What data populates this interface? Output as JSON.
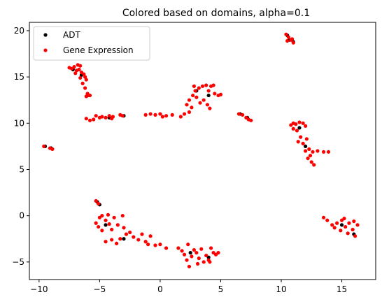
{
  "chart_data": {
    "type": "scatter",
    "title": "Colored based on domains, alpha=0.1",
    "xlabel": "",
    "ylabel": "",
    "xlim": [
      -10.8,
      17.8
    ],
    "ylim": [
      -6.9,
      20.9
    ],
    "x_ticks": [
      -10,
      -5,
      0,
      5,
      10,
      15
    ],
    "y_ticks": [
      -5,
      0,
      5,
      10,
      15,
      20
    ],
    "x_tick_labels": [
      "−10",
      "−5",
      "0",
      "5",
      "10",
      "15"
    ],
    "y_tick_labels": [
      "−5",
      "0",
      "5",
      "10",
      "15",
      "20"
    ],
    "grid": false,
    "legend": {
      "placement": "top-left",
      "entries": [
        {
          "label": "ADT",
          "color": "#000000"
        },
        {
          "label": "Gene Expression",
          "color": "#ff0000"
        }
      ]
    },
    "series": [
      {
        "name": "ADT",
        "color": "#000000",
        "points": [
          [
            10.5,
            19.5
          ],
          [
            10.7,
            19.0
          ],
          [
            11.0,
            18.8
          ],
          [
            -7.2,
            15.8
          ],
          [
            -6.5,
            15.2
          ],
          [
            -6.0,
            13.0
          ],
          [
            -4.2,
            10.6
          ],
          [
            -3.0,
            10.8
          ],
          [
            -9.5,
            7.5
          ],
          [
            -9.0,
            7.3
          ],
          [
            3.0,
            13.5
          ],
          [
            4.0,
            13.0
          ],
          [
            7.2,
            10.6
          ],
          [
            6.6,
            11.0
          ],
          [
            -5.2,
            1.5
          ],
          [
            -5.0,
            1.2
          ],
          [
            -4.5,
            -1.0
          ],
          [
            -3.0,
            -2.5
          ],
          [
            2.5,
            -4.0
          ],
          [
            4.0,
            -4.5
          ],
          [
            11.5,
            9.5
          ],
          [
            12.0,
            7.5
          ],
          [
            15.0,
            -1.0
          ],
          [
            16.0,
            -2.0
          ]
        ]
      },
      {
        "name": "Gene Expression",
        "color": "#ff0000",
        "points": [
          [
            10.4,
            19.6
          ],
          [
            10.6,
            19.3
          ],
          [
            10.8,
            19.0
          ],
          [
            10.5,
            18.9
          ],
          [
            11.0,
            18.7
          ],
          [
            10.9,
            19.1
          ],
          [
            -7.5,
            16.0
          ],
          [
            -7.3,
            15.9
          ],
          [
            -7.1,
            16.1
          ],
          [
            -6.9,
            15.7
          ],
          [
            -6.8,
            16.3
          ],
          [
            -6.6,
            16.2
          ],
          [
            -6.5,
            15.5
          ],
          [
            -6.3,
            15.3
          ],
          [
            -6.2,
            15.0
          ],
          [
            -6.1,
            14.7
          ],
          [
            -6.4,
            14.3
          ],
          [
            -6.2,
            13.8
          ],
          [
            -6.0,
            13.2
          ],
          [
            -6.1,
            12.9
          ],
          [
            -5.8,
            13.0
          ],
          [
            -6.6,
            14.9
          ],
          [
            -7.0,
            15.4
          ],
          [
            -6.7,
            15.8
          ],
          [
            -6.1,
            10.5
          ],
          [
            -5.8,
            10.3
          ],
          [
            -5.5,
            10.4
          ],
          [
            -5.0,
            10.6
          ],
          [
            -4.8,
            10.7
          ],
          [
            -4.5,
            10.6
          ],
          [
            -4.2,
            10.8
          ],
          [
            -3.9,
            10.7
          ],
          [
            -3.3,
            10.9
          ],
          [
            -3.1,
            10.8
          ],
          [
            -5.3,
            10.8
          ],
          [
            -4.0,
            10.5
          ],
          [
            -1.2,
            10.9
          ],
          [
            -0.8,
            11.0
          ],
          [
            -0.4,
            10.9
          ],
          [
            0.0,
            11.0
          ],
          [
            0.5,
            10.8
          ],
          [
            1.0,
            10.9
          ],
          [
            1.7,
            10.7
          ],
          [
            2.0,
            11.0
          ],
          [
            2.4,
            11.2
          ],
          [
            0.2,
            10.7
          ],
          [
            -9.6,
            7.5
          ],
          [
            -9.1,
            7.3
          ],
          [
            -8.9,
            7.2
          ],
          [
            2.2,
            12.0
          ],
          [
            2.4,
            12.5
          ],
          [
            2.7,
            13.0
          ],
          [
            2.9,
            13.5
          ],
          [
            3.2,
            13.8
          ],
          [
            3.5,
            14.0
          ],
          [
            3.8,
            14.1
          ],
          [
            4.0,
            13.5
          ],
          [
            4.2,
            14.0
          ],
          [
            4.5,
            13.2
          ],
          [
            3.0,
            12.8
          ],
          [
            3.6,
            12.5
          ],
          [
            3.9,
            12.0
          ],
          [
            4.1,
            11.6
          ],
          [
            2.6,
            11.7
          ],
          [
            4.8,
            13.0
          ],
          [
            5.0,
            13.1
          ],
          [
            3.3,
            12.2
          ],
          [
            2.8,
            14.0
          ],
          [
            4.4,
            14.1
          ],
          [
            6.5,
            11.0
          ],
          [
            6.8,
            10.9
          ],
          [
            7.1,
            10.6
          ],
          [
            7.3,
            10.4
          ],
          [
            7.5,
            10.3
          ],
          [
            -5.3,
            1.6
          ],
          [
            -5.1,
            1.3
          ],
          [
            -4.8,
            0.0
          ],
          [
            -5.3,
            -0.8
          ],
          [
            -5.1,
            -1.2
          ],
          [
            -4.8,
            -1.6
          ],
          [
            -4.5,
            -0.5
          ],
          [
            -4.2,
            -0.9
          ],
          [
            -4.0,
            -1.5
          ],
          [
            -3.8,
            -0.2
          ],
          [
            -3.5,
            -1.0
          ],
          [
            -3.3,
            -2.5
          ],
          [
            -3.0,
            -1.3
          ],
          [
            -2.8,
            -2.0
          ],
          [
            -4.5,
            -2.8
          ],
          [
            -4.0,
            -2.6
          ],
          [
            -3.6,
            -3.0
          ],
          [
            -2.5,
            -1.8
          ],
          [
            -2.2,
            -2.3
          ],
          [
            -1.8,
            -2.6
          ],
          [
            -1.5,
            -2.0
          ],
          [
            -1.2,
            -2.8
          ],
          [
            -1.0,
            -3.1
          ],
          [
            -0.8,
            -2.2
          ],
          [
            -0.4,
            -3.2
          ],
          [
            0.0,
            -3.1
          ],
          [
            0.5,
            -3.5
          ],
          [
            -5.0,
            -0.2
          ],
          [
            -4.3,
            0.1
          ],
          [
            -3.1,
            0.0
          ],
          [
            1.5,
            -3.5
          ],
          [
            1.8,
            -3.8
          ],
          [
            2.0,
            -4.2
          ],
          [
            2.2,
            -4.8
          ],
          [
            2.4,
            -5.5
          ],
          [
            2.6,
            -4.4
          ],
          [
            2.8,
            -3.7
          ],
          [
            3.0,
            -4.0
          ],
          [
            3.2,
            -4.6
          ],
          [
            3.4,
            -3.6
          ],
          [
            3.6,
            -5.0
          ],
          [
            3.8,
            -4.3
          ],
          [
            4.0,
            -4.8
          ],
          [
            4.2,
            -3.5
          ],
          [
            4.4,
            -4.0
          ],
          [
            4.6,
            -4.2
          ],
          [
            4.8,
            -4.0
          ],
          [
            2.3,
            -3.1
          ],
          [
            3.1,
            -5.2
          ],
          [
            4.1,
            -5.0
          ],
          [
            10.8,
            9.8
          ],
          [
            11.0,
            10.0
          ],
          [
            11.2,
            9.9
          ],
          [
            11.5,
            10.1
          ],
          [
            11.8,
            10.0
          ],
          [
            12.0,
            9.7
          ],
          [
            11.3,
            9.2
          ],
          [
            11.6,
            8.5
          ],
          [
            11.4,
            8.0
          ],
          [
            11.8,
            7.8
          ],
          [
            12.0,
            7.0
          ],
          [
            12.3,
            7.2
          ],
          [
            12.6,
            6.9
          ],
          [
            13.0,
            7.0
          ],
          [
            13.5,
            6.9
          ],
          [
            13.9,
            6.9
          ],
          [
            12.2,
            6.2
          ],
          [
            12.5,
            5.8
          ],
          [
            12.7,
            5.5
          ],
          [
            12.4,
            6.5
          ],
          [
            11.0,
            9.4
          ],
          [
            12.1,
            8.3
          ],
          [
            13.5,
            -0.2
          ],
          [
            13.8,
            -0.5
          ],
          [
            14.2,
            -1.0
          ],
          [
            14.6,
            -0.8
          ],
          [
            15.0,
            -0.5
          ],
          [
            15.3,
            -1.2
          ],
          [
            15.6,
            -0.8
          ],
          [
            15.9,
            -1.5
          ],
          [
            16.1,
            -2.2
          ],
          [
            16.3,
            -1.0
          ],
          [
            14.9,
            -1.6
          ],
          [
            15.5,
            -1.9
          ],
          [
            16.0,
            -0.6
          ],
          [
            14.4,
            -1.3
          ],
          [
            15.2,
            -0.3
          ]
        ]
      }
    ]
  }
}
